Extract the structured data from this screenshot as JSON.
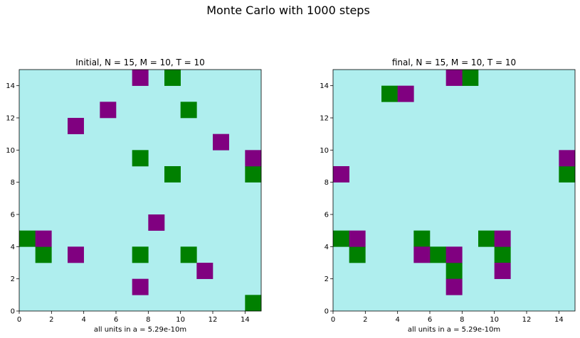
{
  "suptitle": "Monte Carlo with 1000 steps",
  "chart_data": [
    {
      "type": "heatmap",
      "title": "Initial, N = 15, M = 10, T = 10",
      "xlabel": "all units in a = 5.29e-10m",
      "ylabel": "",
      "grid_size": 15,
      "xlim": [
        0,
        15
      ],
      "ylim": [
        0,
        15
      ],
      "xticks": [
        0,
        2,
        4,
        6,
        8,
        10,
        12,
        14
      ],
      "yticks": [
        0,
        2,
        4,
        6,
        8,
        10,
        12,
        14
      ],
      "grid": false,
      "colors": {
        "empty": "#afeeee",
        "green": "#008000",
        "purple": "#800080"
      },
      "green_cells": [
        [
          9,
          14
        ],
        [
          10,
          12
        ],
        [
          7,
          9
        ],
        [
          9,
          8
        ],
        [
          14,
          8
        ],
        [
          0,
          4
        ],
        [
          1,
          3
        ],
        [
          7,
          3
        ],
        [
          10,
          3
        ],
        [
          14,
          0
        ]
      ],
      "purple_cells": [
        [
          7,
          14
        ],
        [
          5,
          12
        ],
        [
          3,
          11
        ],
        [
          12,
          10
        ],
        [
          14,
          9
        ],
        [
          8,
          5
        ],
        [
          1,
          4
        ],
        [
          3,
          3
        ],
        [
          11,
          2
        ],
        [
          7,
          1
        ]
      ]
    },
    {
      "type": "heatmap",
      "title": "final, N = 15, M = 10, T = 10",
      "xlabel": "all units in a = 5.29e-10m",
      "ylabel": "",
      "grid_size": 15,
      "xlim": [
        0,
        15
      ],
      "ylim": [
        0,
        15
      ],
      "xticks": [
        0,
        2,
        4,
        6,
        8,
        10,
        12,
        14
      ],
      "yticks": [
        0,
        2,
        4,
        6,
        8,
        10,
        12,
        14
      ],
      "grid": false,
      "colors": {
        "empty": "#afeeee",
        "green": "#008000",
        "purple": "#800080"
      },
      "green_cells": [
        [
          8,
          14
        ],
        [
          3,
          13
        ],
        [
          14,
          8
        ],
        [
          0,
          4
        ],
        [
          5,
          4
        ],
        [
          9,
          4
        ],
        [
          1,
          3
        ],
        [
          6,
          3
        ],
        [
          10,
          3
        ],
        [
          7,
          2
        ]
      ],
      "purple_cells": [
        [
          7,
          14
        ],
        [
          4,
          13
        ],
        [
          14,
          9
        ],
        [
          0,
          8
        ],
        [
          1,
          4
        ],
        [
          10,
          4
        ],
        [
          5,
          3
        ],
        [
          7,
          3
        ],
        [
          10,
          2
        ],
        [
          7,
          1
        ]
      ]
    }
  ]
}
